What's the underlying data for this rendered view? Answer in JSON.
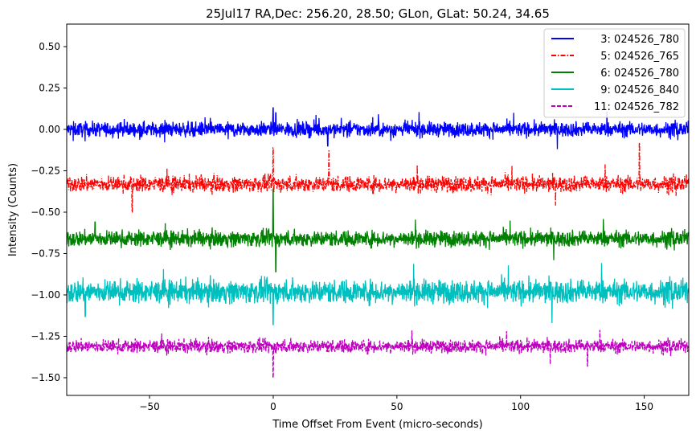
{
  "chart_data": {
    "type": "line",
    "title": "25Jul17 RA,Dec:  256.20,  28.50; GLon, GLat:   50.24,  34.65",
    "xlabel": "Time Offset From Event (micro-seconds)",
    "ylabel": "Intensity (Counts)",
    "xlim": [
      -83.5,
      168
    ],
    "ylim": [
      -1.607,
      0.636
    ],
    "xticks": [
      -50,
      0,
      50,
      100,
      150
    ],
    "xtick_labels": [
      "−50",
      "0",
      "50",
      "100",
      "150"
    ],
    "yticks": [
      0.5,
      0.25,
      0.0,
      -0.25,
      -0.5,
      -0.75,
      -1.0,
      -1.25,
      -1.5
    ],
    "ytick_labels": [
      "0.50",
      "0.25",
      "0.00",
      "−0.25",
      "−0.50",
      "−0.75",
      "−1.00",
      "−1.25",
      "−1.50"
    ],
    "grid": false,
    "legend_position": "top-right",
    "series": [
      {
        "name": "3: 024526_780",
        "color": "#0000ff",
        "dash": "solid",
        "baseline": 0.0,
        "noise": 0.022,
        "spikes": [
          [
            0,
            0.13
          ],
          [
            1,
            0.1
          ],
          [
            22,
            -0.1
          ]
        ]
      },
      {
        "name": "5: 024526_765",
        "color": "#ff0000",
        "dash": "dashdot",
        "baseline": -0.33,
        "noise": 0.024,
        "spikes": [
          [
            0,
            0.22
          ],
          [
            22.5,
            0.2
          ],
          [
            -57,
            -0.17
          ],
          [
            148,
            0.25
          ]
        ]
      },
      {
        "name": "6: 024526_780",
        "color": "#008000",
        "dash": "solid",
        "baseline": -0.66,
        "noise": 0.024,
        "spikes": [
          [
            0,
            0.3
          ],
          [
            1,
            -0.2
          ],
          [
            -72,
            0.1
          ]
        ]
      },
      {
        "name": "9: 024526_840",
        "color": "#00bfbf",
        "dash": "solid",
        "baseline": -0.98,
        "noise": 0.035,
        "spikes": [
          [
            0,
            -0.2
          ],
          [
            -76,
            -0.15
          ]
        ]
      },
      {
        "name": "11: 024526_782",
        "color": "#bf00bf",
        "dash": "dashed",
        "baseline": -1.31,
        "noise": 0.02,
        "spikes": [
          [
            0,
            -0.19
          ],
          [
            127,
            -0.12
          ]
        ]
      }
    ]
  }
}
